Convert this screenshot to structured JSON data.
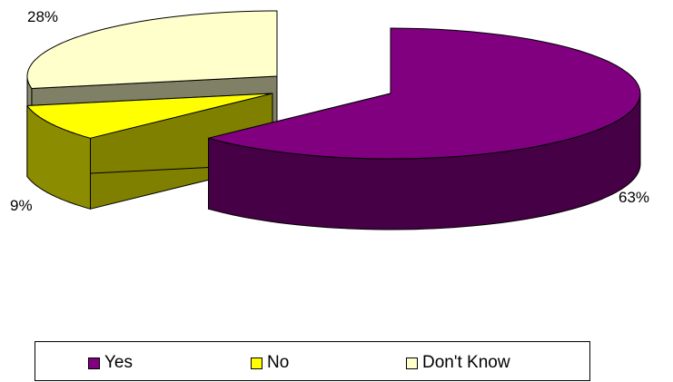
{
  "chart_data": {
    "type": "pie",
    "style": "3d-exploded",
    "categories": [
      "Yes",
      "No",
      "Don't Know"
    ],
    "values": [
      63,
      9,
      28
    ],
    "labels": [
      "63%",
      "9%",
      "28%"
    ],
    "colors": {
      "Yes": "#800080",
      "No": "#ffff00",
      "Don't Know": "#ffffcc"
    },
    "legend": "bottom"
  }
}
